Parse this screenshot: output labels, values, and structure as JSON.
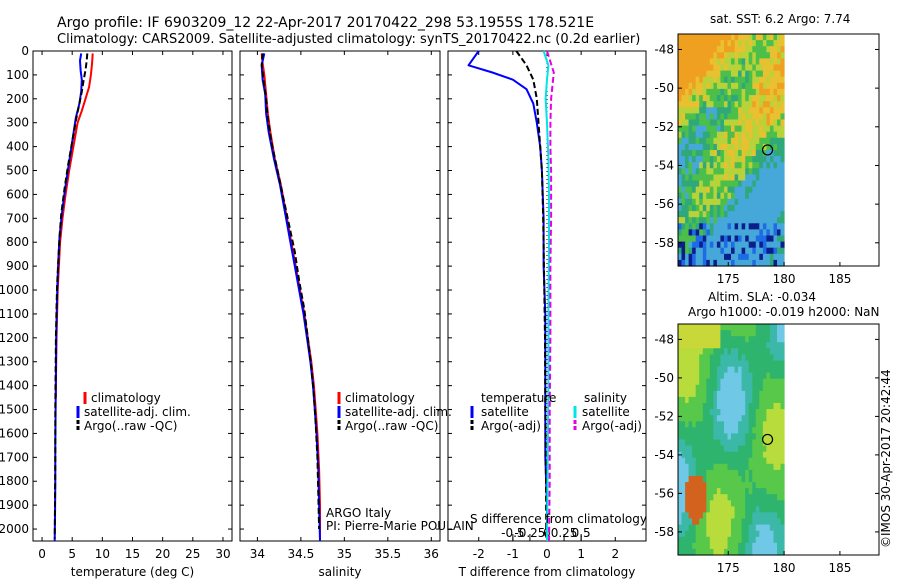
{
  "header": {
    "line1": "Argo profile: IF 6903209_12 22-Apr-2017 20170422_298 53.1955S 178.521E",
    "line2": "Climatology: CARS2009. Satellite-adjusted climatology: synTS_20170422.nc (0.2d earlier)"
  },
  "footer_stamp": "©IMOS 30-Apr-2017 20:42:44",
  "colors": {
    "climatology": "#ff0000",
    "satellite": "#0000ff",
    "argo": "#000000",
    "salinity_satellite": "#00e5e5",
    "salinity_argo": "#e600e6"
  },
  "chart_data": [
    {
      "id": "temperature",
      "type": "line",
      "xlabel": "temperature (deg C)",
      "ylabel": "",
      "xlim": [
        -1.5,
        31.5
      ],
      "ylim": [
        2050,
        0
      ],
      "x_ticks": [
        0,
        5,
        10,
        15,
        20,
        25,
        30
      ],
      "y_ticks": [
        0,
        100,
        200,
        300,
        400,
        500,
        600,
        700,
        800,
        900,
        1000,
        1100,
        1200,
        1300,
        1400,
        1500,
        1600,
        1700,
        1800,
        1900,
        2000
      ],
      "legend": [
        "climatology",
        "satellite-adj. clim.",
        "Argo(..raw -QC)"
      ],
      "series": [
        {
          "name": "climatology",
          "color": "#ff0000",
          "style": "solid",
          "x": [
            8.4,
            8.3,
            8.1,
            7.8,
            7.2,
            6.6,
            5.9,
            5.2,
            4.5,
            3.9,
            3.4,
            3.0,
            2.8,
            2.6,
            2.5,
            2.4,
            2.35,
            2.3,
            2.3
          ],
          "y": [
            10,
            50,
            100,
            150,
            200,
            250,
            300,
            400,
            500,
            600,
            700,
            800,
            900,
            1000,
            1100,
            1200,
            1300,
            1400,
            1450
          ]
        },
        {
          "name": "satellite-adj. clim.",
          "color": "#0000ff",
          "style": "solid",
          "x": [
            6.5,
            6.3,
            6.4,
            6.6,
            6.5,
            6.2,
            5.6,
            5.0,
            4.4,
            3.8,
            3.3,
            2.9,
            2.7,
            2.55,
            2.45,
            2.35,
            2.3,
            2.25,
            2.2,
            2.2,
            2.15,
            2.1
          ],
          "y": [
            10,
            40,
            80,
            120,
            170,
            220,
            280,
            380,
            480,
            580,
            680,
            780,
            880,
            980,
            1080,
            1200,
            1350,
            1500,
            1650,
            1800,
            1950,
            2050
          ]
        },
        {
          "name": "Argo(..raw -QC)",
          "color": "#000000",
          "style": "dashed",
          "x": [
            7.5,
            7.4,
            7.2,
            6.9,
            6.6,
            6.2,
            5.7,
            5.0,
            4.3,
            3.7,
            3.2,
            2.9,
            2.7,
            2.5,
            2.4,
            2.3,
            2.25,
            2.2,
            2.2,
            2.15,
            2.1
          ],
          "y": [
            10,
            40,
            80,
            120,
            170,
            220,
            280,
            380,
            480,
            580,
            680,
            780,
            880,
            980,
            1080,
            1200,
            1350,
            1500,
            1700,
            1900,
            2040
          ]
        }
      ]
    },
    {
      "id": "salinity",
      "type": "line",
      "xlabel": "salinity",
      "ylabel": "",
      "xlim": [
        33.8,
        36.1
      ],
      "ylim": [
        2050,
        0
      ],
      "x_ticks": [
        34,
        34.5,
        35,
        35.5,
        36
      ],
      "legend": [
        "climatology",
        "satellite-adj. clim.",
        "Argo(..raw -QC)"
      ],
      "annotations": [
        "ARGO Italy",
        "PI: Pierre-Marie POULAIN"
      ],
      "series": [
        {
          "name": "climatology",
          "color": "#ff0000",
          "style": "solid",
          "x": [
            34.05,
            34.06,
            34.08,
            34.1,
            34.12,
            34.15,
            34.2,
            34.27,
            34.33,
            34.39,
            34.44,
            34.49,
            34.54,
            34.58,
            34.62,
            34.65,
            34.67,
            34.69,
            34.71,
            34.72,
            34.72
          ],
          "y": [
            10,
            50,
            100,
            180,
            260,
            340,
            450,
            560,
            680,
            800,
            900,
            1000,
            1100,
            1200,
            1300,
            1400,
            1500,
            1600,
            1750,
            1900,
            2050
          ]
        },
        {
          "name": "satellite-adj. clim.",
          "color": "#0000ff",
          "style": "solid",
          "x": [
            34.08,
            34.05,
            34.06,
            34.09,
            34.1,
            34.13,
            34.19,
            34.26,
            34.32,
            34.38,
            34.43,
            34.48,
            34.53,
            34.57,
            34.61,
            34.64,
            34.66,
            34.68,
            34.7,
            34.71,
            34.72
          ],
          "y": [
            10,
            60,
            120,
            180,
            260,
            340,
            450,
            560,
            680,
            800,
            900,
            1000,
            1100,
            1200,
            1300,
            1400,
            1500,
            1600,
            1750,
            1900,
            2050
          ]
        },
        {
          "name": "Argo(..raw -QC)",
          "color": "#000000",
          "style": "dashed",
          "x": [
            34.06,
            34.05,
            34.07,
            34.1,
            34.12,
            34.16,
            34.22,
            34.29,
            34.36,
            34.43,
            34.48,
            34.54,
            34.58,
            34.62,
            34.65,
            34.67,
            34.69,
            34.7,
            34.71
          ],
          "y": [
            10,
            60,
            120,
            200,
            280,
            380,
            480,
            600,
            720,
            840,
            960,
            1080,
            1200,
            1320,
            1440,
            1560,
            1700,
            1850,
            2000
          ]
        }
      ]
    },
    {
      "id": "difference",
      "type": "line",
      "xlabel": "T difference from climatology",
      "x2label": "S difference from climatology",
      "xlim": [
        -2.9,
        2.9
      ],
      "ylim": [
        2050,
        0
      ],
      "x_ticks_T": [
        -2,
        -1,
        0,
        1,
        2
      ],
      "x_ticks_S": [
        "-0.5",
        "-0.25",
        "0",
        "0.25",
        "0.5"
      ],
      "legend_temperature_title": "temperature",
      "legend_salinity_title": "salinity",
      "legend": [
        "satellite",
        "Argo(-adj)",
        "satellite",
        "Argo(-adj)"
      ],
      "series": [
        {
          "name": "satellite",
          "quantity": "temperature",
          "color": "#0000ff",
          "style": "solid",
          "x": [
            -2.0,
            -2.3,
            -1.6,
            -1.0,
            -0.6,
            -0.4,
            -0.3,
            -0.2,
            -0.15,
            -0.1,
            -0.1,
            -0.05,
            -0.05,
            -0.05,
            0,
            0
          ],
          "y": [
            0,
            60,
            90,
            120,
            160,
            220,
            300,
            400,
            500,
            700,
            900,
            1100,
            1400,
            1700,
            1900,
            2050
          ]
        },
        {
          "name": "Argo(-adj)",
          "quantity": "temperature",
          "color": "#000000",
          "style": "dashed",
          "x": [
            -0.9,
            -0.6,
            -0.4,
            -0.3,
            -0.25,
            -0.2,
            -0.15,
            -0.12,
            -0.1,
            -0.08,
            -0.06,
            -0.05,
            -0.03,
            -0.02
          ],
          "y": [
            0,
            60,
            120,
            200,
            300,
            400,
            500,
            650,
            800,
            1000,
            1200,
            1500,
            1800,
            2050
          ]
        },
        {
          "name": "satellite",
          "quantity": "salinity",
          "color": "#00e5e5",
          "style": "solid",
          "x": [
            -0.05,
            0.02,
            0.0,
            -0.02,
            0.0,
            0.02,
            0.03,
            0.03,
            0.02,
            0.02,
            0.01,
            0.0
          ],
          "y": [
            0,
            60,
            120,
            200,
            300,
            450,
            600,
            800,
            1100,
            1400,
            1700,
            2050
          ]
        },
        {
          "name": "Argo(-adj)",
          "quantity": "salinity",
          "color": "#e600e6",
          "style": "dashed",
          "x": [
            0.0,
            0.1,
            0.06,
            0.05,
            0.05,
            0.06,
            0.06,
            0.05,
            0.05,
            0.04,
            0.04,
            0.03
          ],
          "y": [
            0,
            90,
            200,
            300,
            400,
            500,
            700,
            900,
            1200,
            1500,
            1800,
            2050
          ]
        }
      ]
    },
    {
      "id": "sst_map",
      "type": "heatmap",
      "title": "sat. SST: 6.2  Argo: 7.74",
      "x_ticks": [
        175,
        180,
        185
      ],
      "y_ticks": [
        -48,
        -50,
        -52,
        -54,
        -56,
        -58
      ],
      "xlim": [
        170.5,
        188.5
      ],
      "ylim": [
        -59.2,
        -47.2
      ],
      "data_extent_lon": [
        170.5,
        180.0
      ],
      "argo_position": {
        "lon": 178.521,
        "lat": -53.1955
      }
    },
    {
      "id": "sla_map",
      "type": "heatmap",
      "title": "Altim. SLA: -0.034",
      "subtitle": "Argo h1000: -0.019  h2000: NaN",
      "x_ticks": [
        175,
        180,
        185
      ],
      "y_ticks": [
        -48,
        -50,
        -52,
        -54,
        -56,
        -58
      ],
      "xlim": [
        170.5,
        188.5
      ],
      "ylim": [
        -59.2,
        -47.2
      ],
      "data_extent_lon": [
        170.5,
        180.0
      ],
      "argo_position": {
        "lon": 178.521,
        "lat": -53.1955
      }
    }
  ]
}
